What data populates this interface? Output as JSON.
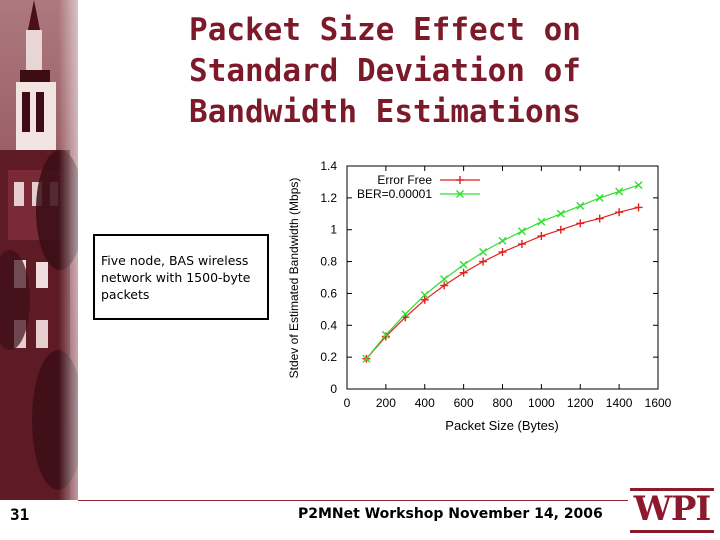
{
  "slide": {
    "title_lines": [
      "Packet Size Effect on",
      "Standard Deviation of",
      "Bandwidth Estimations"
    ],
    "note": [
      "Five node, BAS wireless",
      "network with 1500-byte",
      "packets"
    ],
    "page_number": "31",
    "footer": "P2MNet Workshop November 14, 2006",
    "logo_text": "WPI"
  },
  "colors": {
    "accent": "#7d1a2a",
    "series_error_free": "#e0201e",
    "series_ber": "#33dd33"
  },
  "chart_data": {
    "type": "line",
    "title": "",
    "xlabel": "Packet Size (Bytes)",
    "ylabel": "Stdev of Estimated Bandwidth (Mbps)",
    "xlim": [
      0,
      1600
    ],
    "ylim": [
      0,
      1.4
    ],
    "xticks": [
      0,
      200,
      400,
      600,
      800,
      1000,
      1200,
      1400,
      1600
    ],
    "yticks": [
      0,
      0.2,
      0.4,
      0.6,
      0.8,
      1,
      1.2,
      1.4
    ],
    "xtick_labels": [
      "0",
      "200",
      "400",
      "600",
      "800",
      "1000",
      "1200",
      "1400",
      "1600"
    ],
    "ytick_labels": [
      "0",
      "0.2",
      "0.4",
      "0.6",
      "0.8",
      "1",
      "1.2",
      "1.4"
    ],
    "legend_position": "top-left",
    "x": [
      100,
      200,
      300,
      400,
      500,
      600,
      700,
      800,
      900,
      1000,
      1100,
      1200,
      1300,
      1400,
      1500
    ],
    "series": [
      {
        "name": "Error Free",
        "marker": "+",
        "values": [
          0.19,
          0.33,
          0.45,
          0.56,
          0.65,
          0.73,
          0.8,
          0.86,
          0.91,
          0.96,
          1.0,
          1.04,
          1.07,
          1.11,
          1.14
        ]
      },
      {
        "name": "BER=0.00001",
        "marker": "x",
        "values": [
          0.19,
          0.34,
          0.47,
          0.59,
          0.69,
          0.78,
          0.86,
          0.93,
          0.99,
          1.05,
          1.1,
          1.15,
          1.2,
          1.24,
          1.28
        ]
      }
    ]
  }
}
